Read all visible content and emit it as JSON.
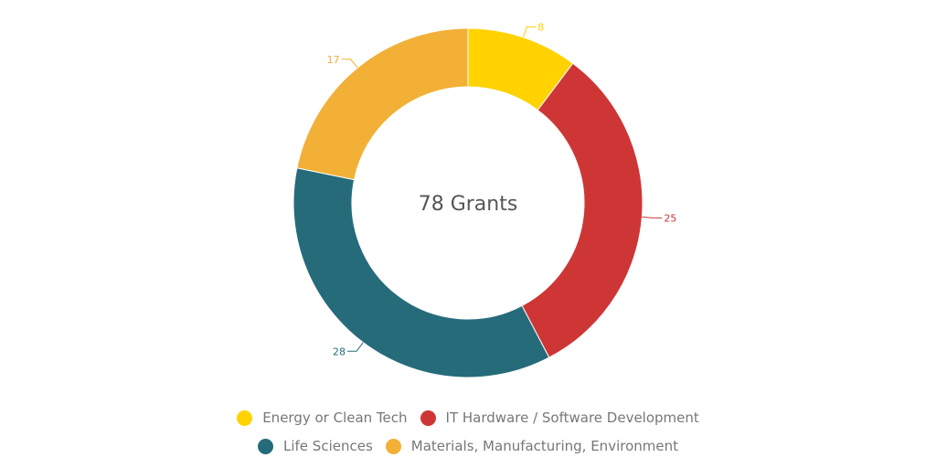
{
  "chart_data": {
    "type": "pie",
    "donut": true,
    "center_label": "78 Grants",
    "categories": [
      "Energy or Clean Tech",
      "IT Hardware / Software Development",
      "Life Sciences",
      "Materials, Manufacturing, Environment"
    ],
    "values": [
      8,
      25,
      28,
      17
    ],
    "colors": [
      "#FFD200",
      "#CE3636",
      "#266B7A",
      "#F2B036"
    ],
    "legend_position": "bottom",
    "data_labels": [
      "8",
      "25",
      "28",
      "17"
    ]
  }
}
